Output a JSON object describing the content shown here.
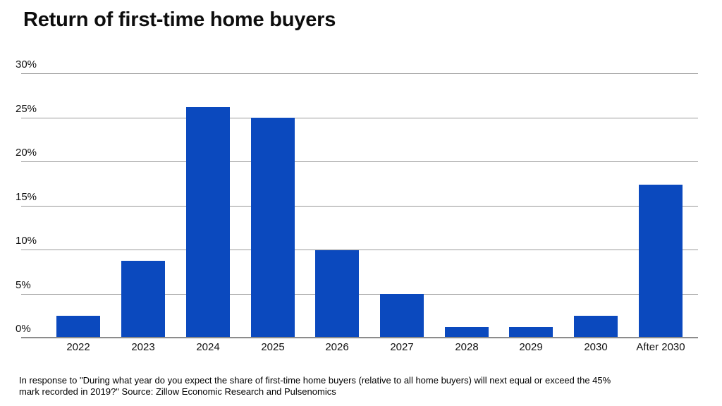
{
  "title": "Return of first-time home buyers",
  "footnote": {
    "line1": "In response to \"During what year do you expect the share of first-time home buyers (relative to all home buyers) will next equal or exceed the 45%",
    "line2": "mark recorded in 2019?\" Source: Zillow Economic Research and Pulsenomics"
  },
  "colors": {
    "bar": "#0b49be",
    "gridline": "#999999",
    "axis": "#8c8c8c",
    "text": "#111111"
  },
  "chart_data": {
    "type": "bar",
    "title": "Return of first-time home buyers",
    "categories": [
      "2022",
      "2023",
      "2024",
      "2025",
      "2026",
      "2027",
      "2028",
      "2029",
      "2030",
      "After 2030"
    ],
    "values": [
      2.5,
      8.7,
      26.2,
      25,
      9.9,
      5,
      1.2,
      1.2,
      2.5,
      17.4
    ],
    "xlabel": "",
    "ylabel": "",
    "ylim": [
      0,
      30
    ],
    "ytick_step": 5,
    "ytick_labels": [
      "0%",
      "5%",
      "10%",
      "15%",
      "20%",
      "25%",
      "30%"
    ],
    "grid": true,
    "legend": false,
    "bar_color": "#0b49be"
  }
}
